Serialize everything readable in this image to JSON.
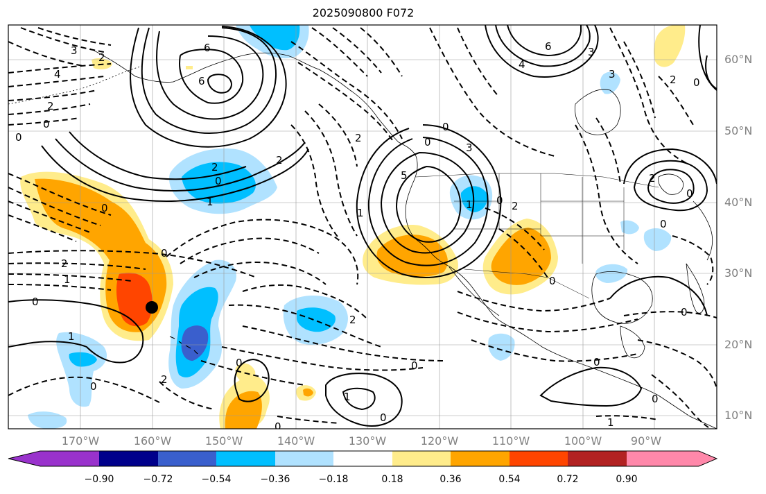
{
  "title": "2025090800 F072",
  "latitude_labels": [
    "60°N",
    "50°N",
    "40°N",
    "30°N",
    "20°N",
    "10°N"
  ],
  "longitude_labels": [
    "170°W",
    "160°W",
    "150°W",
    "140°W",
    "130°W",
    "120°W",
    "110°W",
    "100°W",
    "90°W"
  ],
  "colorbar": {
    "tick_labels": [
      "−0.90",
      "−0.72",
      "−0.54",
      "−0.36",
      "−0.18",
      "0.18",
      "0.36",
      "0.54",
      "0.72",
      "0.90"
    ],
    "colors": [
      "#9932CC",
      "#00008B",
      "#3A5FCD",
      "#00BFFF",
      "#B0E2FF",
      "#FFFFFF",
      "#FFEC8B",
      "#FFA500",
      "#FF4500",
      "#B22222",
      "#FF88AA"
    ]
  },
  "contour_labels": [
    "3",
    "4",
    "2",
    "0",
    "6",
    "6",
    "0",
    "2",
    "0",
    "3",
    "3",
    "6",
    "4",
    "2",
    "0",
    "2",
    "1",
    "2",
    "0",
    "5",
    "0",
    "2",
    "1",
    "1",
    "2",
    "0",
    "0",
    "1",
    "0",
    "2",
    "0",
    "0",
    "1",
    "0",
    "0",
    "0",
    "0",
    "1",
    "0",
    "0",
    "0",
    "0",
    "0",
    "1",
    "2",
    "2",
    "3",
    "2",
    "0"
  ],
  "fill_colors": {
    "light_yellow": "#FFEC8B",
    "orange": "#FFA500",
    "red_orange": "#FF4500",
    "light_blue": "#B0E2FF",
    "blue": "#00BFFF",
    "medium_blue": "#3A5FCD"
  }
}
